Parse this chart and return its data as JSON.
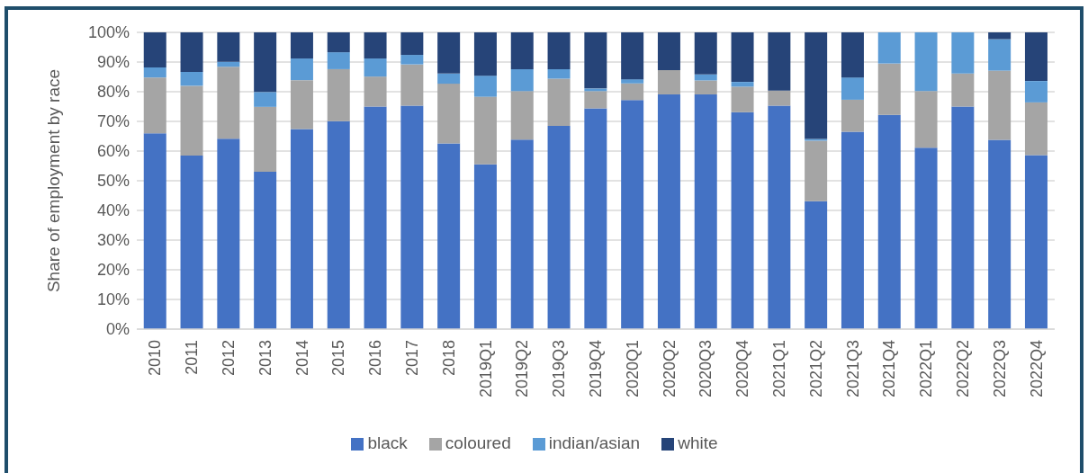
{
  "chart_data": {
    "type": "bar",
    "stacked": true,
    "ylabel": "Share of employment by race",
    "categories": [
      "2010",
      "2011",
      "2012",
      "2013",
      "2014",
      "2015",
      "2016",
      "2017",
      "2018",
      "2019Q1",
      "2019Q2",
      "2019Q3",
      "2019Q4",
      "2020Q1",
      "2020Q2",
      "2020Q3",
      "2020Q4",
      "2021Q1",
      "2021Q2",
      "2021Q3",
      "2021Q4",
      "2022Q1",
      "2022Q2",
      "2022Q3",
      "2022Q4"
    ],
    "series": [
      {
        "name": "black",
        "color": "#4472c4",
        "values": [
          66.0,
          58.5,
          64.2,
          53.0,
          67.4,
          70.1,
          75.0,
          75.3,
          62.6,
          55.5,
          63.9,
          68.5,
          74.4,
          77.2,
          79.1,
          79.1,
          73.1,
          75.3,
          43.1,
          66.5,
          72.2,
          61.1,
          75.0,
          63.8,
          58.6
        ]
      },
      {
        "name": "coloured",
        "color": "#a5a5a5",
        "values": [
          18.8,
          23.5,
          24.2,
          21.9,
          16.5,
          17.5,
          10.1,
          13.9,
          20.1,
          22.8,
          16.3,
          15.9,
          5.8,
          5.6,
          8.2,
          4.7,
          8.6,
          5.1,
          20.4,
          10.8,
          17.3,
          19.1,
          11.1,
          23.3,
          17.8
        ]
      },
      {
        "name": "indian/asian",
        "color": "#5b9bd5",
        "values": [
          3.4,
          4.7,
          1.7,
          5.0,
          7.3,
          5.7,
          6.1,
          3.2,
          3.4,
          7.1,
          7.4,
          3.2,
          0.9,
          1.4,
          0,
          2.0,
          1.6,
          0,
          0.6,
          7.5,
          10.5,
          19.8,
          13.9,
          10.6,
          7.2
        ]
      },
      {
        "name": "white",
        "color": "#264478",
        "values": [
          11.8,
          13.3,
          9.9,
          20.1,
          8.8,
          6.7,
          8.8,
          7.6,
          13.9,
          14.6,
          12.4,
          12.4,
          18.9,
          15.8,
          12.7,
          14.2,
          16.7,
          19.6,
          35.9,
          15.2,
          0,
          0,
          0,
          2.3,
          16.4
        ]
      }
    ],
    "ylim": [
      0,
      100
    ],
    "yticks": [
      {
        "value": 0,
        "label": "0%"
      },
      {
        "value": 10,
        "label": "10%"
      },
      {
        "value": 20,
        "label": "20%"
      },
      {
        "value": 30,
        "label": "30%"
      },
      {
        "value": 40,
        "label": "40%"
      },
      {
        "value": 50,
        "label": "50%"
      },
      {
        "value": 60,
        "label": "60%"
      },
      {
        "value": 70,
        "label": "70%"
      },
      {
        "value": 80,
        "label": "80%"
      },
      {
        "value": 90,
        "label": "90%"
      },
      {
        "value": 100,
        "label": "100%"
      }
    ],
    "grid": "y",
    "legend": "bottom"
  }
}
